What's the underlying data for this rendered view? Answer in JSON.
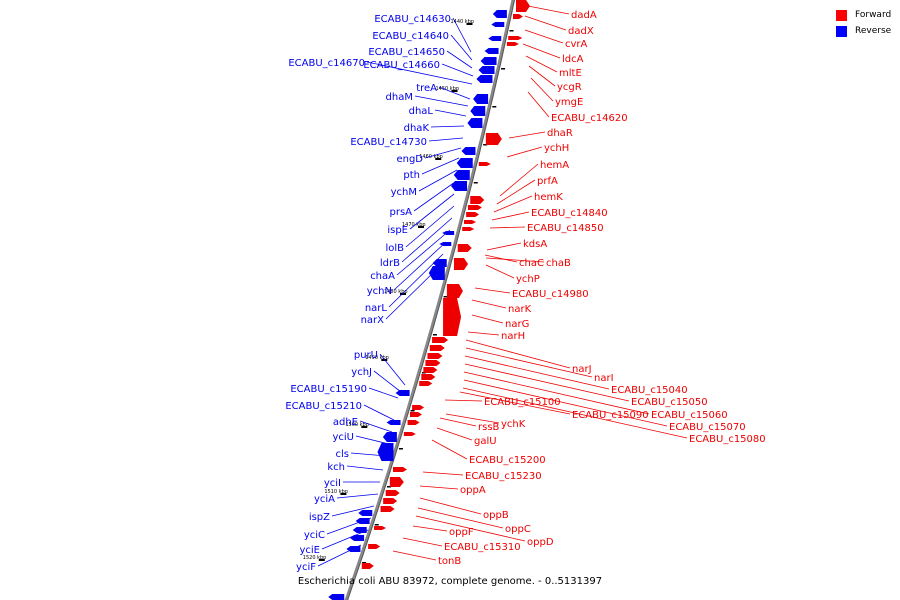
{
  "caption": "Escherichia coli ABU 83972, complete genome. - 0..5131397",
  "legend": {
    "forward_label": "Forward",
    "reverse_label": "Reverse",
    "forward_color": "#ff0000",
    "reverse_color": "#0000ff"
  },
  "colors": {
    "forward": "#ee0000",
    "reverse": "#0000ee",
    "axis": "#888888"
  },
  "ticks": [
    "1440 kbp",
    "1450 kbp",
    "1460 kbp",
    "1470 kbp",
    "1480 kbp",
    "1490 kbp",
    "1500 kbp",
    "1510 kbp",
    "1520 kbp"
  ],
  "reverse_genes": [
    "ECABU_c14630",
    "ECABU_c14640",
    "ECABU_c14650",
    "ECABU_c14660",
    "ECABU_c14670",
    "treA",
    "dhaM",
    "dhaL",
    "dhaK",
    "ECABU_c14730",
    "engD",
    "pth",
    "ychM",
    "prsA",
    "ispE",
    "lolB",
    "ldrB",
    "chaA",
    "ychN",
    "narL",
    "narX",
    "purU",
    "ychJ",
    "ECABU_c15190",
    "ECABU_c15210",
    "adhE",
    "yciU",
    "cls",
    "kch",
    "yciI",
    "yciA",
    "ispZ",
    "yciC",
    "yciE",
    "yciF"
  ],
  "forward_genes": [
    "dadA",
    "dadX",
    "cvrA",
    "ldcA",
    "mltE",
    "ycgR",
    "ymgE",
    "ECABU_c14620",
    "dhaR",
    "ychH",
    "hemA",
    "prfA",
    "hemK",
    "ECABU_c14840",
    "ECABU_c14850",
    "kdsA",
    "chaC",
    "chaB",
    "ychP",
    "ECABU_c14980",
    "narK",
    "narG",
    "narH",
    "narJ",
    "narI",
    "ECABU_c15040",
    "ECABU_c15050",
    "ECABU_c15060",
    "ECABU_c15070",
    "ECABU_c15080",
    "ECABU_c15090",
    "ECABU_c15100",
    "ychK",
    "rssB",
    "galU",
    "ECABU_c15200",
    "ECABU_c15230",
    "oppA",
    "oppB",
    "oppC",
    "oppD",
    "oppF",
    "ECABU_c15310",
    "tonB"
  ]
}
